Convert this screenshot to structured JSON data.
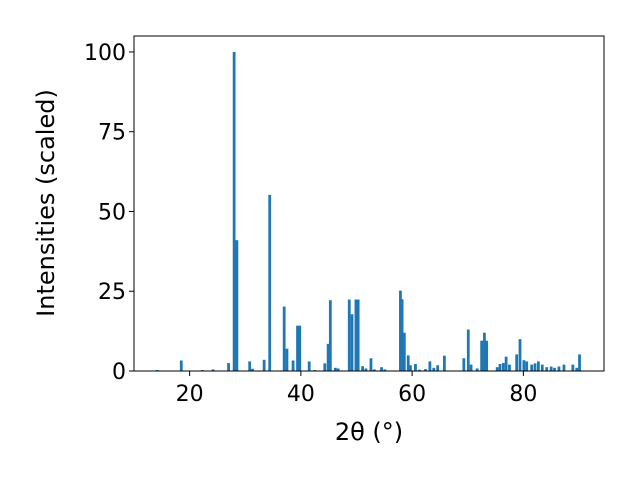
{
  "chart_data": {
    "type": "bar",
    "title": "",
    "xlabel": "2θ (°)",
    "ylabel": "Intensities (scaled)",
    "xlim": [
      10,
      94.5
    ],
    "ylim": [
      0,
      105
    ],
    "xticks": [
      20,
      40,
      60,
      80
    ],
    "yticks": [
      0,
      25,
      50,
      75,
      100
    ],
    "grid": false,
    "bar_width": 0.5,
    "bar_color": "#1f77b4",
    "series": [
      {
        "x": [
          14.2,
          18.5,
          22.3,
          24.2,
          27.0,
          28.0,
          28.5,
          30.8,
          31.3,
          33.4,
          34.4,
          37.0,
          37.5,
          38.6,
          39.4,
          39.8,
          41.5,
          42.5,
          44.3,
          44.9,
          45.3,
          46.2,
          46.7,
          48.7,
          49.2,
          49.9,
          50.3,
          51.1,
          51.7,
          52.6,
          53.2,
          54.5,
          55.1,
          57.9,
          58.2,
          58.6,
          59.3,
          59.7,
          60.6,
          61.3,
          62.4,
          63.2,
          63.9,
          64.6,
          65.8,
          69.3,
          70.1,
          70.6,
          71.7,
          72.5,
          73.0,
          73.4,
          75.3,
          75.8,
          76.4,
          76.9,
          77.5,
          78.8,
          79.4,
          80.1,
          80.6,
          81.5,
          82.1,
          82.7,
          83.4,
          84.2,
          85.0,
          85.6,
          86.4,
          87.3,
          88.9,
          89.6,
          90.1
        ],
        "values": [
          0.3,
          3.3,
          0.3,
          0.5,
          2.5,
          100,
          41,
          3.0,
          0.7,
          3.5,
          55.2,
          20.2,
          7.0,
          3.3,
          14.2,
          14.2,
          3.0,
          0.3,
          2.4,
          8.5,
          22.2,
          1.0,
          0.8,
          22.4,
          17.8,
          22.4,
          22.4,
          1.5,
          0.8,
          4.0,
          0.5,
          1.2,
          0.5,
          25.2,
          22.5,
          12.0,
          4.9,
          1.8,
          2.2,
          0.4,
          0.6,
          3.0,
          1.0,
          1.8,
          4.8,
          4.0,
          13.0,
          2.0,
          0.8,
          9.5,
          12.0,
          9.5,
          1.2,
          2.2,
          2.5,
          4.5,
          2.0,
          5.2,
          10.0,
          3.4,
          3.0,
          2.0,
          2.4,
          3.0,
          2.0,
          1.2,
          1.4,
          1.0,
          1.4,
          2.0,
          2.0,
          1.0,
          5.2
        ]
      }
    ]
  }
}
